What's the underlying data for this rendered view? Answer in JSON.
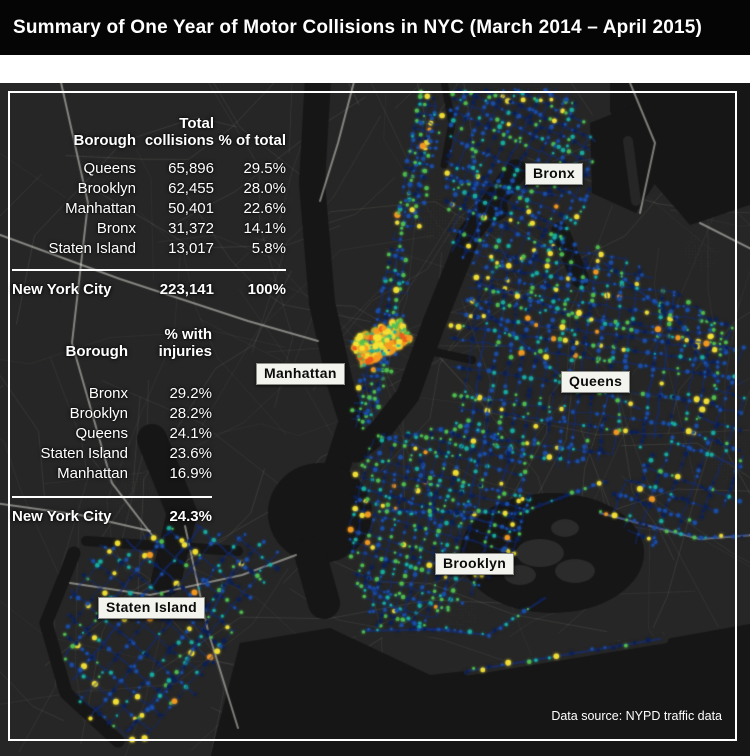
{
  "title": "Summary of One Year of Motor Collisions in NYC (March 2014 – April 2015)",
  "data_source": "Data source: NYPD traffic data",
  "map_labels": {
    "bronx": "Bronx",
    "manhattan": "Manhattan",
    "queens": "Queens",
    "brooklyn": "Brooklyn",
    "staten_island": "Staten Island"
  },
  "tables": {
    "collisions": {
      "col_headers": {
        "borough": "Borough",
        "total": "Total collisions",
        "pct": "% of total"
      },
      "rows": [
        {
          "borough": "Queens",
          "total": "65,896",
          "pct": "29.5%"
        },
        {
          "borough": "Brooklyn",
          "total": "62,455",
          "pct": "28.0%"
        },
        {
          "borough": "Manhattan",
          "total": "50,401",
          "pct": "22.6%"
        },
        {
          "borough": "Bronx",
          "total": "31,372",
          "pct": "14.1%"
        },
        {
          "borough": "Staten Island",
          "total": "13,017",
          "pct": "5.8%"
        }
      ],
      "footer": {
        "borough": "New York City",
        "total": "223,141",
        "pct": "100%"
      }
    },
    "injuries": {
      "col_headers": {
        "borough": "Borough",
        "pct": "% with injuries"
      },
      "rows": [
        {
          "borough": "Bronx",
          "pct": "29.2%"
        },
        {
          "borough": "Brooklyn",
          "pct": "28.2%"
        },
        {
          "borough": "Queens",
          "pct": "24.1%"
        },
        {
          "borough": "Staten Island",
          "pct": "23.6%"
        },
        {
          "borough": "Manhattan",
          "pct": "16.9%"
        }
      ],
      "footer": {
        "borough": "New York City",
        "pct": "24.3%"
      }
    }
  },
  "colors": {
    "background": "#000000",
    "panel_land": "#262626",
    "water": "#161616",
    "frame": "#ffffff",
    "label_bg": "#f4f4ee",
    "heat_navy": "#0c2054",
    "heat_blue": "#1b4fa8",
    "heat_teal": "#18b0a2",
    "heat_green": "#52c24e",
    "heat_yellow": "#f6e335",
    "heat_orange": "#f79b20",
    "heat_red": "#ef5a1c"
  }
}
